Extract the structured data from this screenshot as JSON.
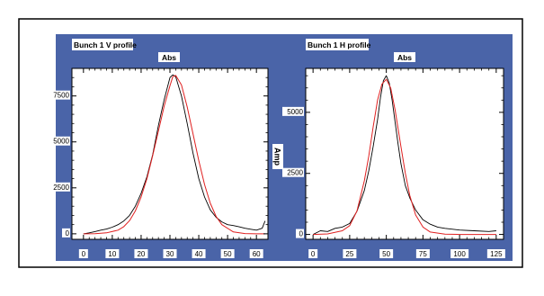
{
  "colors": {
    "panel_bg": "#4a64a8",
    "plot_bg": "#ffffff",
    "label_bg": "#ffffff",
    "data_line": "#000000",
    "fit_line": "#e02020",
    "outer_border": "#000000"
  },
  "shared": {
    "ylabel": "Amp"
  },
  "chart_data": [
    {
      "type": "line",
      "title": "Bunch 1 V profile",
      "subtitle": "Abs",
      "xlabel": "",
      "ylabel": "",
      "xlim": [
        -4,
        64
      ],
      "ylim": [
        -300,
        9000
      ],
      "xticks": [
        0,
        10,
        20,
        30,
        40,
        50,
        60
      ],
      "yticks": [
        0,
        2500,
        5000,
        7500
      ],
      "ytick_labels": [
        "0",
        "2500",
        "5000",
        "7500"
      ],
      "grid": false,
      "series": [
        {
          "role": "measured",
          "color": "#000000",
          "x": [
            0,
            2,
            4,
            6,
            8,
            10,
            12,
            14,
            16,
            18,
            20,
            22,
            24,
            26,
            28,
            29,
            30,
            31,
            32,
            34,
            36,
            38,
            40,
            42,
            44,
            46,
            48,
            50,
            52,
            54,
            56,
            58,
            60,
            62,
            63
          ],
          "y": [
            0,
            50,
            120,
            200,
            260,
            360,
            500,
            700,
            1000,
            1500,
            2200,
            3100,
            4300,
            5900,
            7300,
            7900,
            8500,
            8650,
            8550,
            7500,
            6000,
            4400,
            3000,
            2000,
            1300,
            900,
            650,
            500,
            450,
            380,
            300,
            250,
            200,
            300,
            700
          ]
        },
        {
          "role": "fit",
          "color": "#e02020",
          "x": [
            0,
            4,
            8,
            12,
            14,
            16,
            18,
            20,
            22,
            24,
            26,
            28,
            30,
            31,
            32,
            34,
            36,
            38,
            40,
            42,
            44,
            46,
            48,
            52,
            56,
            60,
            63
          ],
          "y": [
            0,
            10,
            50,
            200,
            390,
            720,
            1240,
            2000,
            3000,
            4250,
            5600,
            6950,
            8050,
            8550,
            8620,
            8100,
            6900,
            5450,
            3980,
            2680,
            1660,
            950,
            500,
            100,
            15,
            0,
            0
          ]
        }
      ]
    },
    {
      "type": "line",
      "title": "Bunch 1 H profile",
      "subtitle": "Abs",
      "xlabel": "",
      "ylabel": "Amp",
      "xlim": [
        -5,
        130
      ],
      "ylim": [
        -200,
        6800
      ],
      "xticks": [
        0,
        25,
        50,
        75,
        100,
        125
      ],
      "yticks": [
        0,
        2500,
        5000
      ],
      "ytick_labels": [
        "0",
        "2500",
        "5000"
      ],
      "grid": false,
      "series": [
        {
          "role": "measured",
          "color": "#000000",
          "x": [
            0,
            5,
            10,
            15,
            20,
            25,
            30,
            35,
            38,
            41,
            44,
            46,
            48,
            50,
            52,
            54,
            56,
            58,
            60,
            63,
            66,
            70,
            75,
            80,
            85,
            90,
            100,
            110,
            120,
            125
          ],
          "y": [
            0,
            150,
            120,
            250,
            300,
            450,
            950,
            1800,
            2600,
            3600,
            4700,
            5600,
            6300,
            6500,
            6200,
            5500,
            4600,
            3700,
            2900,
            2000,
            1500,
            1000,
            600,
            420,
            300,
            250,
            180,
            150,
            120,
            150
          ]
        },
        {
          "role": "fit",
          "color": "#e02020",
          "x": [
            0,
            10,
            20,
            25,
            30,
            35,
            38,
            41,
            44,
            47,
            50,
            53,
            56,
            60,
            63,
            66,
            70,
            75,
            80,
            90,
            100,
            110,
            125
          ],
          "y": [
            0,
            20,
            150,
            360,
            960,
            2200,
            3200,
            4400,
            5500,
            6150,
            6350,
            6000,
            5100,
            3600,
            2500,
            1600,
            800,
            300,
            100,
            10,
            0,
            0,
            0
          ]
        }
      ]
    }
  ]
}
